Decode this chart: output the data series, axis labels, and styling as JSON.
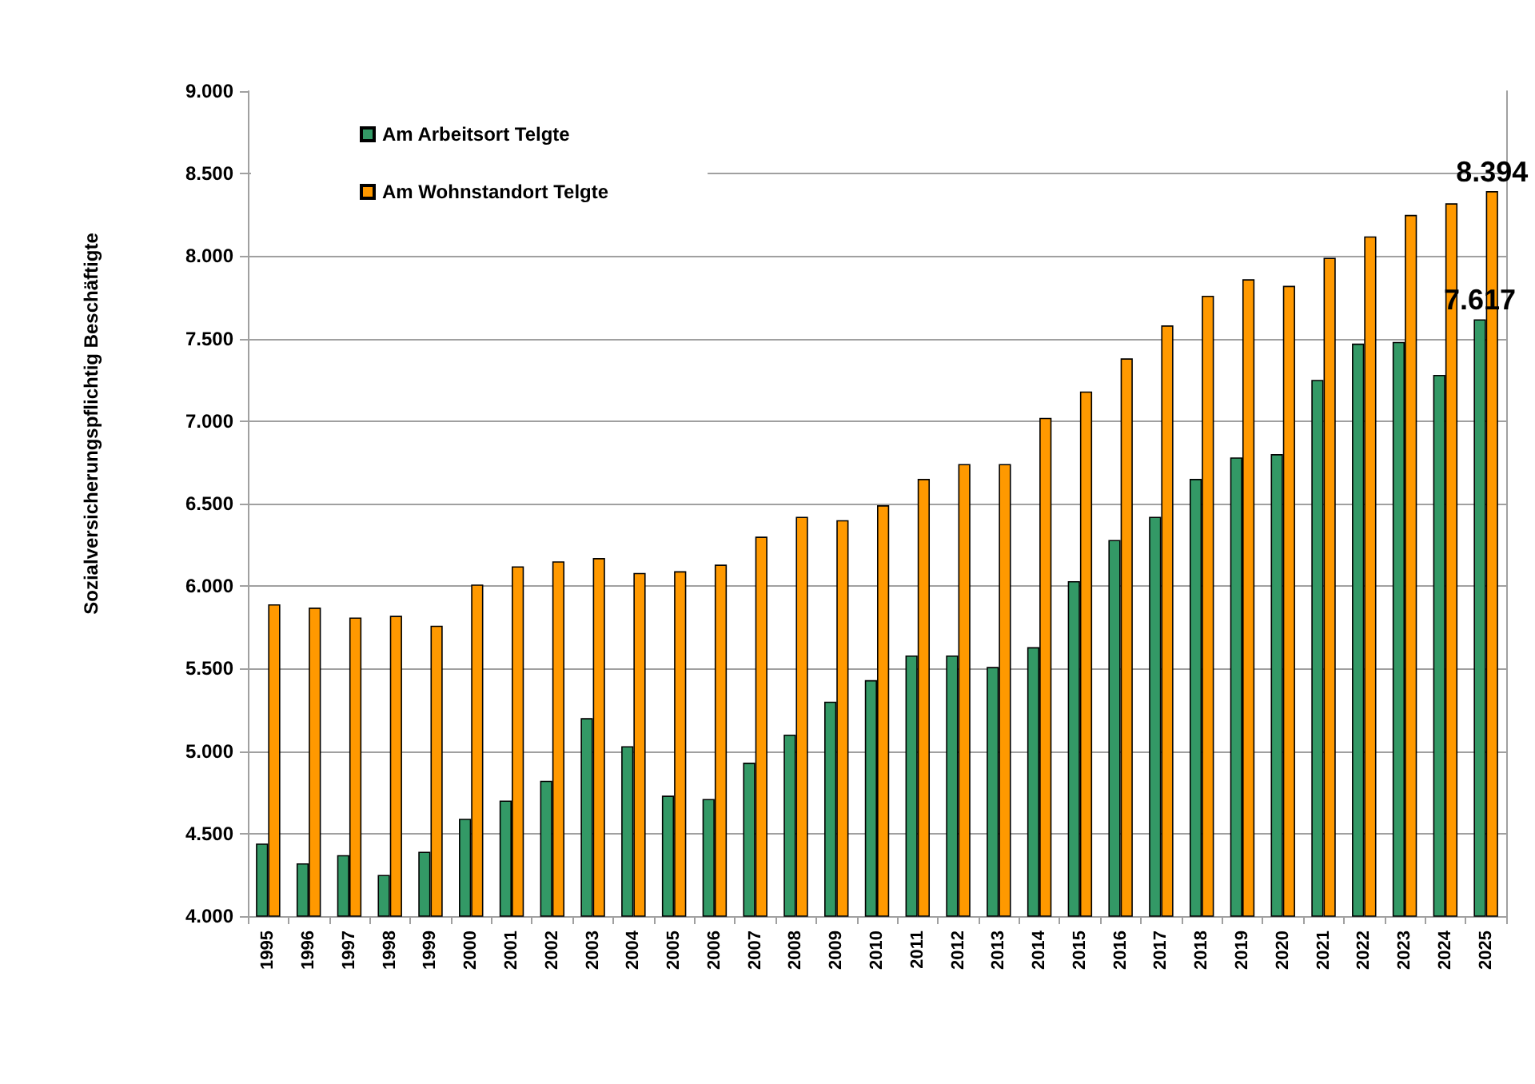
{
  "chart_data": {
    "type": "bar",
    "ylabel": "Sozialversicherungspflichtig Beschäftigte",
    "categories": [
      "1995",
      "1996",
      "1997",
      "1998",
      "1999",
      "2000",
      "2001",
      "2002",
      "2003",
      "2004",
      "2005",
      "2006",
      "2007",
      "2008",
      "2009",
      "2010",
      "2011",
      "2012",
      "2013",
      "2014",
      "2015",
      "2016",
      "2017",
      "2018",
      "2019",
      "2020",
      "2021",
      "2022",
      "2023",
      "2024",
      "2025"
    ],
    "series": [
      {
        "name": "Am Arbeitsort Telgte",
        "color": "#339966",
        "values": [
          4440,
          4320,
          4370,
          4250,
          4390,
          4590,
          4700,
          4820,
          5200,
          5030,
          4730,
          4710,
          4930,
          5100,
          5300,
          5430,
          5580,
          5580,
          5510,
          5630,
          6030,
          6280,
          6420,
          6650,
          6780,
          6800,
          7250,
          7470,
          7480,
          7280,
          7617
        ],
        "value_labels": [
          null,
          null,
          null,
          null,
          null,
          null,
          null,
          null,
          null,
          null,
          null,
          null,
          null,
          null,
          null,
          null,
          null,
          null,
          null,
          null,
          null,
          null,
          null,
          null,
          null,
          null,
          null,
          null,
          null,
          null,
          "7.617"
        ]
      },
      {
        "name": "Am Wohnstandort Telgte",
        "color": "#ff9900",
        "values": [
          5890,
          5870,
          5810,
          5820,
          5760,
          6010,
          6120,
          6150,
          6170,
          6080,
          6090,
          6130,
          6300,
          6420,
          6400,
          6490,
          6650,
          6740,
          6740,
          7020,
          7180,
          7380,
          7580,
          7760,
          7860,
          7820,
          7990,
          8120,
          8250,
          8320,
          8394
        ],
        "value_labels": [
          null,
          null,
          null,
          null,
          null,
          null,
          null,
          null,
          null,
          null,
          null,
          null,
          null,
          null,
          null,
          null,
          null,
          null,
          null,
          null,
          null,
          null,
          null,
          null,
          null,
          null,
          null,
          null,
          null,
          null,
          "8.394"
        ]
      }
    ],
    "ylim": [
      4000,
      9000
    ],
    "yticks": [
      {
        "value": 4000,
        "label": "4.000"
      },
      {
        "value": 4500,
        "label": "4.500"
      },
      {
        "value": 5000,
        "label": "5.000"
      },
      {
        "value": 5500,
        "label": "5.500"
      },
      {
        "value": 6000,
        "label": "6.000"
      },
      {
        "value": 6500,
        "label": "6.500"
      },
      {
        "value": 7000,
        "label": "7.000"
      },
      {
        "value": 7500,
        "label": "7.500"
      },
      {
        "value": 8000,
        "label": "8.000"
      },
      {
        "value": 8500,
        "label": "8.500"
      },
      {
        "value": 9000,
        "label": "9.000"
      }
    ],
    "grid": "y",
    "legend": "top left"
  }
}
